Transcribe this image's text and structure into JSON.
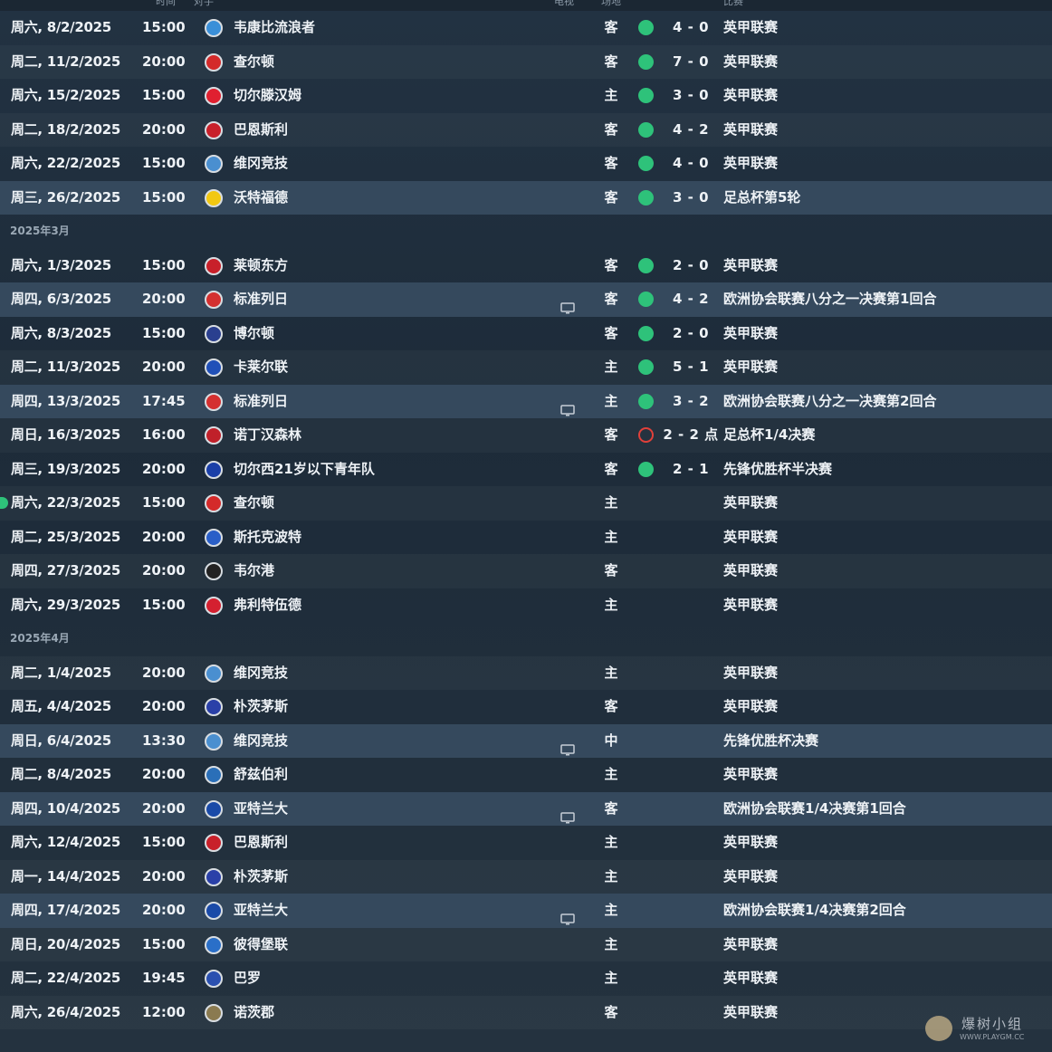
{
  "header": {
    "columns": [
      "时间",
      "对手",
      "电视",
      "场地",
      "比赛"
    ]
  },
  "matches": [
    {
      "date": "周六, 8/2/2025",
      "time": "15:00",
      "opponent": "韦康比流浪者",
      "crest_color": "#3a8fd8",
      "tv": false,
      "venue": "客",
      "result": "win",
      "score": "4 - 0",
      "competition": "英甲联赛"
    },
    {
      "date": "周二, 11/2/2025",
      "time": "20:00",
      "opponent": "查尔顿",
      "crest_color": "#d42a2a",
      "tv": false,
      "venue": "客",
      "result": "win",
      "score": "7 - 0",
      "competition": "英甲联赛"
    },
    {
      "date": "周六, 15/2/2025",
      "time": "15:00",
      "opponent": "切尔滕汉姆",
      "crest_color": "#e02030",
      "tv": false,
      "venue": "主",
      "result": "win",
      "score": "3 - 0",
      "competition": "英甲联赛"
    },
    {
      "date": "周二, 18/2/2025",
      "time": "20:00",
      "opponent": "巴恩斯利",
      "crest_color": "#c8202a",
      "tv": false,
      "venue": "客",
      "result": "win",
      "score": "4 - 2",
      "competition": "英甲联赛"
    },
    {
      "date": "周六, 22/2/2025",
      "time": "15:00",
      "opponent": "维冈竞技",
      "crest_color": "#4a8fd0",
      "tv": false,
      "venue": "客",
      "result": "win",
      "score": "4 - 0",
      "competition": "英甲联赛"
    },
    {
      "date": "周三, 26/2/2025",
      "time": "15:00",
      "opponent": "沃特福德",
      "crest_color": "#f2c812",
      "tv": false,
      "venue": "客",
      "result": "win",
      "score": "3 - 0",
      "competition": "足总杯第5轮",
      "highlight": true
    },
    {
      "month": "2025年3月"
    },
    {
      "date": "周六, 1/3/2025",
      "time": "15:00",
      "opponent": "莱顿东方",
      "crest_color": "#c8202a",
      "tv": false,
      "venue": "客",
      "result": "win",
      "score": "2 - 0",
      "competition": "英甲联赛"
    },
    {
      "date": "周四, 6/3/2025",
      "time": "20:00",
      "opponent": "标准列日",
      "crest_color": "#d43030",
      "tv": true,
      "venue": "客",
      "result": "win",
      "score": "4 - 2",
      "competition": "欧洲协会联赛八分之一决赛第1回合",
      "highlight": true
    },
    {
      "date": "周六, 8/3/2025",
      "time": "15:00",
      "opponent": "博尔顿",
      "crest_color": "#2a3f8f",
      "tv": false,
      "venue": "客",
      "result": "win",
      "score": "2 - 0",
      "competition": "英甲联赛"
    },
    {
      "date": "周二, 11/3/2025",
      "time": "20:00",
      "opponent": "卡莱尔联",
      "crest_color": "#2050b8",
      "tv": false,
      "venue": "主",
      "result": "win",
      "score": "5 - 1",
      "competition": "英甲联赛"
    },
    {
      "date": "周四, 13/3/2025",
      "time": "17:45",
      "opponent": "标准列日",
      "crest_color": "#d43030",
      "tv": true,
      "venue": "主",
      "result": "win",
      "score": "3 - 2",
      "competition": "欧洲协会联赛八分之一决赛第2回合",
      "highlight": true
    },
    {
      "date": "周日, 16/3/2025",
      "time": "16:00",
      "opponent": "诺丁汉森林",
      "crest_color": "#c0202a",
      "tv": false,
      "venue": "客",
      "result": "draw",
      "score": "2 - 2 点",
      "competition": "足总杯1/4决赛"
    },
    {
      "date": "周三, 19/3/2025",
      "time": "20:00",
      "opponent": "切尔西21岁以下青年队",
      "crest_color": "#1a3fa8",
      "tv": false,
      "venue": "客",
      "result": "win",
      "score": "2 - 1",
      "competition": "先锋优胜杯半决赛"
    },
    {
      "date": "周六, 22/3/2025",
      "time": "15:00",
      "opponent": "查尔顿",
      "crest_color": "#d42a2a",
      "tv": false,
      "venue": "主",
      "result": "",
      "score": "",
      "competition": "英甲联赛",
      "next": true
    },
    {
      "date": "周二, 25/3/2025",
      "time": "20:00",
      "opponent": "斯托克波特",
      "crest_color": "#2a5fc8",
      "tv": false,
      "venue": "主",
      "result": "",
      "score": "",
      "competition": "英甲联赛"
    },
    {
      "date": "周四, 27/3/2025",
      "time": "20:00",
      "opponent": "韦尔港",
      "crest_color": "#222222",
      "tv": false,
      "venue": "客",
      "result": "",
      "score": "",
      "competition": "英甲联赛"
    },
    {
      "date": "周六, 29/3/2025",
      "time": "15:00",
      "opponent": "弗利特伍德",
      "crest_color": "#d42030",
      "tv": false,
      "venue": "主",
      "result": "",
      "score": "",
      "competition": "英甲联赛"
    },
    {
      "month": "2025年4月"
    },
    {
      "date": "周二, 1/4/2025",
      "time": "20:00",
      "opponent": "维冈竞技",
      "crest_color": "#4a8fd0",
      "tv": false,
      "venue": "主",
      "result": "",
      "score": "",
      "competition": "英甲联赛"
    },
    {
      "date": "周五, 4/4/2025",
      "time": "20:00",
      "opponent": "朴茨茅斯",
      "crest_color": "#2a40a8",
      "tv": false,
      "venue": "客",
      "result": "",
      "score": "",
      "competition": "英甲联赛"
    },
    {
      "date": "周日, 6/4/2025",
      "time": "13:30",
      "opponent": "维冈竞技",
      "crest_color": "#4a8fd0",
      "tv": true,
      "venue": "中",
      "result": "",
      "score": "",
      "competition": "先锋优胜杯决赛",
      "highlight": true
    },
    {
      "date": "周二, 8/4/2025",
      "time": "20:00",
      "opponent": "舒兹伯利",
      "crest_color": "#2a6fb8",
      "tv": false,
      "venue": "主",
      "result": "",
      "score": "",
      "competition": "英甲联赛"
    },
    {
      "date": "周四, 10/4/2025",
      "time": "20:00",
      "opponent": "亚特兰大",
      "crest_color": "#1a4aa8",
      "tv": true,
      "venue": "客",
      "result": "",
      "score": "",
      "competition": "欧洲协会联赛1/4决赛第1回合",
      "highlight": true
    },
    {
      "date": "周六, 12/4/2025",
      "time": "15:00",
      "opponent": "巴恩斯利",
      "crest_color": "#c8202a",
      "tv": false,
      "venue": "主",
      "result": "",
      "score": "",
      "competition": "英甲联赛"
    },
    {
      "date": "周一, 14/4/2025",
      "time": "20:00",
      "opponent": "朴茨茅斯",
      "crest_color": "#2a40a8",
      "tv": false,
      "venue": "主",
      "result": "",
      "score": "",
      "competition": "英甲联赛"
    },
    {
      "date": "周四, 17/4/2025",
      "time": "20:00",
      "opponent": "亚特兰大",
      "crest_color": "#1a4aa8",
      "tv": true,
      "venue": "主",
      "result": "",
      "score": "",
      "competition": "欧洲协会联赛1/4决赛第2回合",
      "highlight": true
    },
    {
      "date": "周日, 20/4/2025",
      "time": "15:00",
      "opponent": "彼得堡联",
      "crest_color": "#2a6fc8",
      "tv": false,
      "venue": "主",
      "result": "",
      "score": "",
      "competition": "英甲联赛"
    },
    {
      "date": "周二, 22/4/2025",
      "time": "19:45",
      "opponent": "巴罗",
      "crest_color": "#2a50b0",
      "tv": false,
      "venue": "主",
      "result": "",
      "score": "",
      "competition": "英甲联赛"
    },
    {
      "date": "周六, 26/4/2025",
      "time": "12:00",
      "opponent": "诺茨郡",
      "crest_color": "#8a7a50",
      "tv": false,
      "venue": "客",
      "result": "",
      "score": "",
      "competition": "英甲联赛"
    }
  ],
  "watermark": {
    "cn": "爆树小组",
    "url": "WWW.PLAYGM.CC"
  }
}
